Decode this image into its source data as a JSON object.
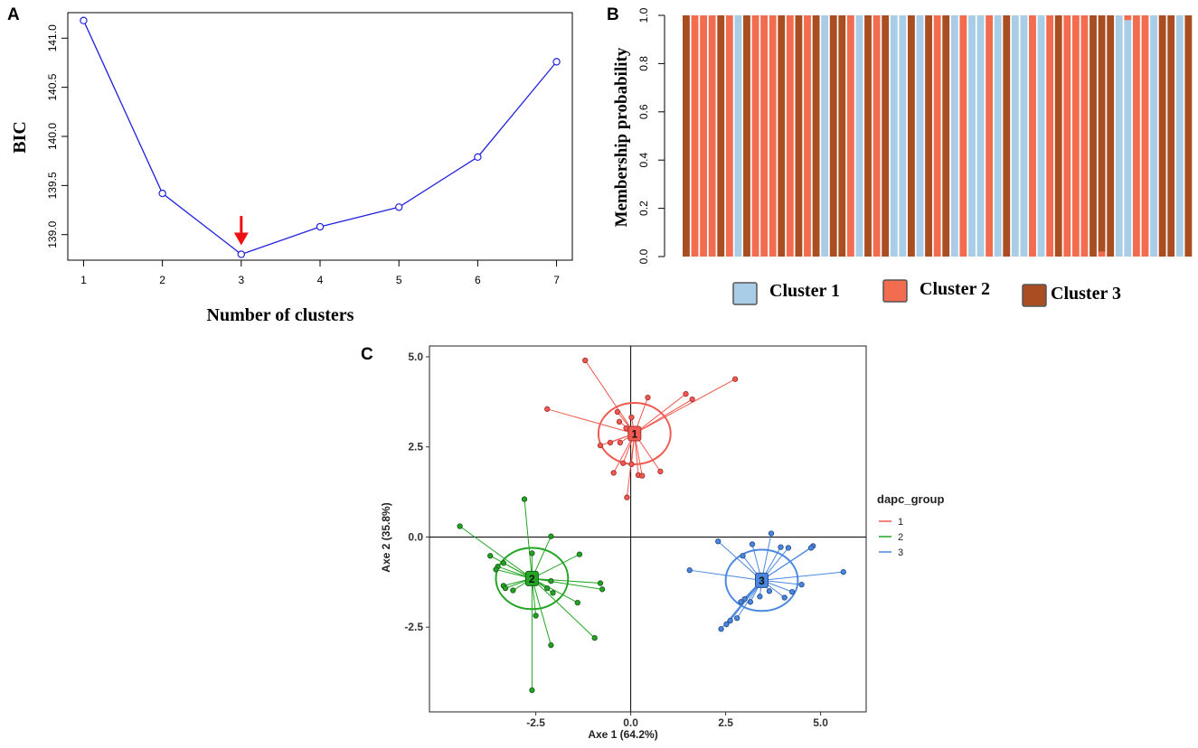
{
  "colors": {
    "bic_line": "#2222dd",
    "arrow": "#ee1111",
    "cluster1": "#a9cde6",
    "cluster2": "#f26d4f",
    "cluster3": "#a84e22",
    "group1": "#f05a50",
    "group2": "#22a522",
    "group3": "#4a88e0"
  },
  "chart_data": [
    {
      "panel": "A",
      "type": "line",
      "xlabel": "Number of clusters",
      "ylabel": "BIC",
      "x": [
        1,
        2,
        3,
        4,
        5,
        6,
        7
      ],
      "values": [
        141.18,
        139.42,
        138.8,
        139.08,
        139.28,
        139.79,
        140.76
      ],
      "xlim": [
        0.8,
        7.2
      ],
      "ylim": [
        138.74,
        141.26
      ],
      "xticks": [
        "1",
        "2",
        "3",
        "4",
        "5",
        "6",
        "7"
      ],
      "yticks": [
        "139.0",
        "139.5",
        "140.0",
        "140.5",
        "141.0"
      ],
      "annotation": {
        "type": "arrow",
        "x": 3,
        "y_from": 139.19,
        "y_to": 138.91
      }
    },
    {
      "panel": "B",
      "type": "bar",
      "stacked": true,
      "ylabel": "Membership probability",
      "ylim": [
        0,
        1
      ],
      "yticks": [
        "0.0",
        "0.2",
        "0.4",
        "0.6",
        "0.8",
        "1.0"
      ],
      "n_bars": 59,
      "assignment": [
        3,
        2,
        2,
        2,
        3,
        2,
        1,
        3,
        2,
        2,
        2,
        3,
        2,
        3,
        2,
        3,
        1,
        3,
        3,
        2,
        1,
        3,
        2,
        3,
        1,
        1,
        3,
        1,
        3,
        2,
        3,
        1,
        2,
        1,
        1,
        2,
        1,
        3,
        1,
        1,
        2,
        1,
        2,
        3,
        2,
        2,
        2,
        3,
        1,
        3,
        1,
        1,
        2,
        2,
        1,
        3,
        3,
        1,
        3
      ],
      "mixed_bars": [
        {
          "index": 48,
          "cluster1": 0.0,
          "cluster2": 0.02,
          "cluster3": 0.98
        },
        {
          "index": 51,
          "cluster1": 0.98,
          "cluster2": 0.02,
          "cluster3": 0.0
        }
      ],
      "legend": [
        "Cluster 1",
        "Cluster 2",
        "Cluster 3"
      ]
    },
    {
      "panel": "C",
      "type": "scatter",
      "xlabel": "Axe 1 (64.2%)",
      "ylabel": "Axe 2 (35.8%)",
      "xlim": [
        -5.3,
        6.2
      ],
      "ylim": [
        -4.85,
        5.3
      ],
      "xticks": [
        "-2.5",
        "0.0",
        "2.5",
        "5.0"
      ],
      "yticks": [
        "-2.5",
        "0.0",
        "2.5",
        "5.0"
      ],
      "legend_title": "dapc_group",
      "legend": [
        "1",
        "2",
        "3"
      ],
      "groups": [
        {
          "name": "1",
          "centroid": [
            0.1,
            2.87
          ],
          "ellipse_radii": [
            0.95,
            0.85
          ],
          "points": [
            [
              -1.2,
              4.9
            ],
            [
              2.75,
              4.38
            ],
            [
              -2.2,
              3.55
            ],
            [
              1.45,
              3.97
            ],
            [
              1.62,
              3.82
            ],
            [
              0.45,
              3.87
            ],
            [
              -0.35,
              3.47
            ],
            [
              0.02,
              3.32
            ],
            [
              -0.3,
              3.2
            ],
            [
              -0.12,
              3.02
            ],
            [
              0.1,
              3.0
            ],
            [
              -0.8,
              2.54
            ],
            [
              -0.54,
              2.62
            ],
            [
              -0.28,
              2.62
            ],
            [
              -0.2,
              2.05
            ],
            [
              0.02,
              2.02
            ],
            [
              -0.45,
              1.78
            ],
            [
              0.2,
              1.72
            ],
            [
              0.3,
              1.7
            ],
            [
              0.78,
              1.82
            ],
            [
              -0.1,
              1.1
            ]
          ]
        },
        {
          "name": "2",
          "centroid": [
            -2.6,
            -1.15
          ],
          "ellipse_radii": [
            0.95,
            0.85
          ],
          "points": [
            [
              -2.8,
              1.05
            ],
            [
              -4.5,
              0.3
            ],
            [
              -2.1,
              0.02
            ],
            [
              -2.6,
              -0.45
            ],
            [
              -1.35,
              -0.48
            ],
            [
              -3.7,
              -0.52
            ],
            [
              -3.35,
              -0.72
            ],
            [
              -3.5,
              -0.82
            ],
            [
              -3.55,
              -0.9
            ],
            [
              -2.1,
              -1.22
            ],
            [
              -3.35,
              -1.35
            ],
            [
              -0.8,
              -1.28
            ],
            [
              -0.75,
              -1.45
            ],
            [
              -3.1,
              -1.48
            ],
            [
              -3.3,
              -1.42
            ],
            [
              -2.2,
              -1.42
            ],
            [
              -2.05,
              -1.55
            ],
            [
              -1.4,
              -1.82
            ],
            [
              -2.5,
              -2.18
            ],
            [
              -0.95,
              -2.8
            ],
            [
              -2.1,
              -3.0
            ],
            [
              -2.6,
              -4.25
            ]
          ]
        },
        {
          "name": "3",
          "centroid": [
            3.45,
            -1.2
          ],
          "ellipse_radii": [
            0.95,
            0.85
          ],
          "points": [
            [
              3.7,
              0.1
            ],
            [
              2.3,
              -0.12
            ],
            [
              3.2,
              -0.2
            ],
            [
              3.95,
              -0.28
            ],
            [
              4.8,
              -0.25
            ],
            [
              4.75,
              -0.3
            ],
            [
              4.15,
              -0.3
            ],
            [
              2.95,
              -0.52
            ],
            [
              1.55,
              -0.92
            ],
            [
              5.6,
              -0.97
            ],
            [
              4.5,
              -1.32
            ],
            [
              4.25,
              -1.52
            ],
            [
              3.65,
              -1.5
            ],
            [
              3.4,
              -1.65
            ],
            [
              4.05,
              -1.68
            ],
            [
              3.0,
              -1.72
            ],
            [
              2.9,
              -1.8
            ],
            [
              3.15,
              -1.8
            ],
            [
              2.8,
              -2.25
            ],
            [
              2.62,
              -2.32
            ],
            [
              2.52,
              -2.42
            ],
            [
              2.38,
              -2.55
            ]
          ]
        }
      ]
    }
  ]
}
